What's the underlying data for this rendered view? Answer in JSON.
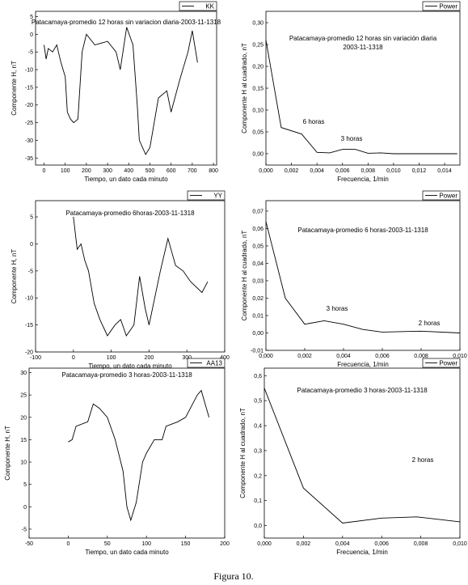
{
  "chart_data": [
    {
      "type": "line",
      "title": [
        "Patacamaya-promedio 12 horas sin variacion diaria-2003-11-1318"
      ],
      "x_label": "Tiempo, un dato cada minuto",
      "y_label": "Componente H, nT",
      "x": [
        0,
        10,
        20,
        40,
        60,
        80,
        100,
        110,
        125,
        140,
        160,
        180,
        200,
        240,
        300,
        340,
        360,
        390,
        420,
        440,
        450,
        480,
        500,
        540,
        580,
        600,
        640,
        680,
        700,
        725
      ],
      "series": [
        {
          "name": "KK",
          "color": "#000000",
          "values": [
            -3,
            -7,
            -4,
            -5,
            -3,
            -8,
            -12,
            -22,
            -24,
            -25,
            -24,
            -5,
            0,
            -3,
            -2,
            -5,
            -10,
            2,
            -3,
            -20,
            -30,
            -34,
            -32,
            -18,
            -16,
            -22,
            -13,
            -5,
            1,
            -8
          ]
        }
      ],
      "xlim": [
        -40,
        815
      ],
      "ylim": [
        -37,
        6.5
      ],
      "xticks": [
        0,
        100,
        200,
        300,
        400,
        500,
        600,
        700,
        800
      ],
      "yticks": [
        -35,
        -30,
        -25,
        -20,
        -15,
        -10,
        -5,
        0,
        5
      ]
    },
    {
      "type": "line",
      "title": [
        "Patacamaya-promedio 12 horas sin variación diaria",
        "2003-11-1318"
      ],
      "x_label": "Frecuencia, 1/min",
      "y_label": "Componente H al cuadrado, nT",
      "x": [
        0,
        0.0012,
        0.0028,
        0.004,
        0.005,
        0.006,
        0.007,
        0.008,
        0.009,
        0.01,
        0.015
      ],
      "series": [
        {
          "name": "Power",
          "color": "#000000",
          "values": [
            0.26,
            0.06,
            0.045,
            0.003,
            0.002,
            0.01,
            0.01,
            0.001,
            0.002,
            0,
            0
          ]
        }
      ],
      "annotations": [
        "6 horas",
        "3 horas"
      ],
      "xlim": [
        0,
        0.0152
      ],
      "ylim": [
        -0.026,
        0.326
      ],
      "xticks": [
        {
          "value": 0,
          "label": "0,000"
        },
        {
          "value": 0.002,
          "label": "0,002"
        },
        {
          "value": 0.004,
          "label": "0,004"
        },
        {
          "value": 0.006,
          "label": "0,006"
        },
        {
          "value": 0.008,
          "label": "0,008"
        },
        {
          "value": 0.01,
          "label": "0,010"
        },
        {
          "value": 0.012,
          "label": "0,012"
        },
        {
          "value": 0.014,
          "label": "0,014"
        }
      ],
      "yticks": [
        {
          "value": 0,
          "label": "0,00"
        },
        {
          "value": 0.05,
          "label": "0,05"
        },
        {
          "value": 0.1,
          "label": "0,10"
        },
        {
          "value": 0.15,
          "label": "0,15"
        },
        {
          "value": 0.2,
          "label": "0,20"
        },
        {
          "value": 0.25,
          "label": "0,25"
        },
        {
          "value": 0.3,
          "label": "0,30"
        }
      ]
    },
    {
      "type": "line",
      "title": [
        "Patacamaya-promedio 6horas-2003-11-1318"
      ],
      "x_label": "Tiempo, un dato cada minuto",
      "y_label": "Componente H, nT",
      "x": [
        0,
        10,
        20,
        30,
        40,
        55,
        70,
        90,
        110,
        125,
        140,
        160,
        175,
        190,
        200,
        230,
        250,
        270,
        290,
        310,
        340,
        355
      ],
      "series": [
        {
          "name": "YY",
          "color": "#000000",
          "values": [
            5,
            -1,
            0,
            -3,
            -5,
            -11,
            -14,
            -17,
            -15,
            -14,
            -17,
            -15,
            -6,
            -12,
            -15,
            -5,
            1,
            -4,
            -5,
            -7,
            -9,
            -7
          ]
        }
      ],
      "xlim": [
        -100,
        400
      ],
      "ylim": [
        -20,
        8
      ],
      "xticks": [
        -100,
        0,
        100,
        200,
        300,
        400
      ],
      "yticks": [
        -20,
        -15,
        -10,
        -5,
        0,
        5
      ]
    },
    {
      "type": "line",
      "title": [
        "Patacamaya-promedio 6 horas-2003-11-1318"
      ],
      "x_label": "Frecuencia, 1/min",
      "y_label": "Componente H al cuadrado, nT",
      "x": [
        0,
        0.001,
        0.002,
        0.003,
        0.004,
        0.005,
        0.006,
        0.008,
        0.01
      ],
      "series": [
        {
          "name": "Power",
          "color": "#000000",
          "values": [
            0.064,
            0.02,
            0.005,
            0.007,
            0.005,
            0.002,
            0.0005,
            0.001,
            0
          ]
        }
      ],
      "annotations": [
        "3 horas",
        "2 horas"
      ],
      "xlim": [
        0,
        0.01
      ],
      "ylim": [
        -0.01,
        0.076
      ],
      "xticks": [
        {
          "value": 0,
          "label": "0,000"
        },
        {
          "value": 0.002,
          "label": "0,002"
        },
        {
          "value": 0.004,
          "label": "0,004"
        },
        {
          "value": 0.006,
          "label": "0,006"
        },
        {
          "value": 0.008,
          "label": "0,008"
        },
        {
          "value": 0.01,
          "label": "0,010"
        }
      ],
      "yticks": [
        {
          "value": -0.01,
          "label": "-0,01"
        },
        {
          "value": 0,
          "label": "0,00"
        },
        {
          "value": 0.01,
          "label": "0,01"
        },
        {
          "value": 0.02,
          "label": "0,02"
        },
        {
          "value": 0.03,
          "label": "0,03"
        },
        {
          "value": 0.04,
          "label": "0,04"
        },
        {
          "value": 0.05,
          "label": "0,05"
        },
        {
          "value": 0.06,
          "label": "0,06"
        },
        {
          "value": 0.07,
          "label": "0,07"
        }
      ]
    },
    {
      "type": "line",
      "title": [
        "Patacamaya-promedio 3 horas-2003-11-1318"
      ],
      "x_label": "Tiempo, un dato cada minuto",
      "y_label": "Componente H, nT",
      "x": [
        0,
        5,
        10,
        25,
        32,
        40,
        50,
        60,
        70,
        75,
        80,
        87,
        95,
        100,
        110,
        120,
        125,
        140,
        150,
        165,
        170,
        175,
        180
      ],
      "series": [
        {
          "name": "AA13",
          "color": "#000000",
          "values": [
            14.5,
            15,
            18,
            19,
            23,
            22,
            20,
            15,
            8,
            0,
            -3,
            1,
            10,
            12,
            15,
            15,
            18,
            19,
            20,
            25,
            26,
            23,
            20
          ]
        }
      ],
      "xlim": [
        -50,
        200
      ],
      "ylim": [
        -7,
        31
      ],
      "xticks": [
        -50,
        0,
        50,
        100,
        150,
        200
      ],
      "yticks": [
        -5,
        0,
        5,
        10,
        15,
        20,
        25,
        30
      ]
    },
    {
      "type": "line",
      "title": [
        "Patacamaya-promedio 3 horas-2003-11-1318"
      ],
      "x_label": "Frecuencia, 1/min",
      "y_label": "Componente H al cuadrado, nT",
      "x": [
        0,
        0.002,
        0.004,
        0.006,
        0.0078,
        0.01
      ],
      "series": [
        {
          "name": "Power",
          "color": "#000000",
          "values": [
            0.55,
            0.15,
            0.01,
            0.03,
            0.035,
            0.015
          ]
        }
      ],
      "annotations": [
        "2 horas"
      ],
      "xlim": [
        0,
        0.01
      ],
      "ylim": [
        -0.05,
        0.63
      ],
      "xticks": [
        {
          "value": 0,
          "label": "0,000"
        },
        {
          "value": 0.002,
          "label": "0,002"
        },
        {
          "value": 0.004,
          "label": "0,004"
        },
        {
          "value": 0.006,
          "label": "0,006"
        },
        {
          "value": 0.008,
          "label": "0,008"
        },
        {
          "value": 0.01,
          "label": "0,010"
        }
      ],
      "yticks": [
        {
          "value": 0,
          "label": "0,0"
        },
        {
          "value": 0.1,
          "label": "0,1"
        },
        {
          "value": 0.2,
          "label": "0,2"
        },
        {
          "value": 0.3,
          "label": "0,3"
        },
        {
          "value": 0.4,
          "label": "0,4"
        },
        {
          "value": 0.5,
          "label": "0,5"
        },
        {
          "value": 0.6,
          "label": "0,6"
        }
      ]
    }
  ],
  "caption": "Figura 10."
}
